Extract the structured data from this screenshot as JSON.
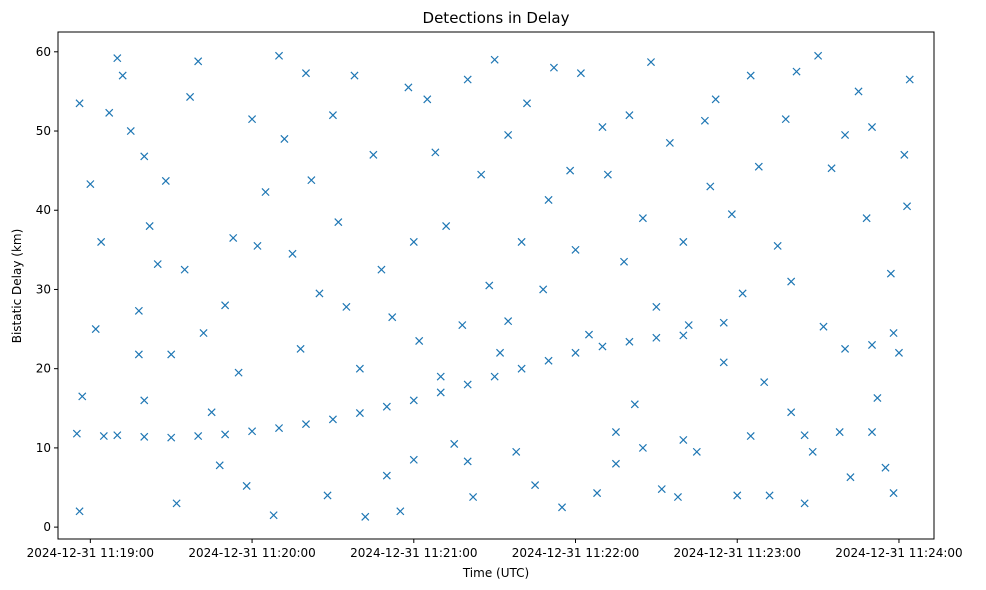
{
  "chart_data": {
    "type": "scatter",
    "title": "Detections in Delay",
    "xlabel": "Time (UTC)",
    "ylabel": "Bistatic Delay (km)",
    "marker": "x",
    "marker_color": "#1f77b4",
    "grid": false,
    "legend": "none",
    "xlim": [
      "2024-12-31T11:18:48",
      "2024-12-31T11:24:13"
    ],
    "ylim": [
      -1.5,
      62.5
    ],
    "x_ticks": [
      "2024-12-31T11:19:00",
      "2024-12-31T11:20:00",
      "2024-12-31T11:21:00",
      "2024-12-31T11:22:00",
      "2024-12-31T11:23:00",
      "2024-12-31T11:24:00"
    ],
    "x_tick_labels": [
      "2024-12-31 11:19:00",
      "2024-12-31 11:20:00",
      "2024-12-31 11:21:00",
      "2024-12-31 11:22:00",
      "2024-12-31 11:23:00",
      "2024-12-31 11:24:00"
    ],
    "y_ticks": [
      0,
      10,
      20,
      30,
      40,
      50,
      60
    ],
    "y_tick_labels": [
      "0",
      "10",
      "20",
      "30",
      "40",
      "50",
      "60"
    ],
    "series": [
      {
        "points": [
          [
            "2024-12-31T11:18:55",
            11.8
          ],
          [
            "2024-12-31T11:19:05",
            11.5
          ],
          [
            "2024-12-31T11:19:10",
            11.6
          ],
          [
            "2024-12-31T11:19:20",
            11.4
          ],
          [
            "2024-12-31T11:19:30",
            11.3
          ],
          [
            "2024-12-31T11:19:40",
            11.5
          ],
          [
            "2024-12-31T11:19:50",
            11.7
          ],
          [
            "2024-12-31T11:20:00",
            12.1
          ],
          [
            "2024-12-31T11:20:10",
            12.5
          ],
          [
            "2024-12-31T11:20:20",
            13.0
          ],
          [
            "2024-12-31T11:20:30",
            13.6
          ],
          [
            "2024-12-31T11:20:40",
            14.4
          ],
          [
            "2024-12-31T11:20:50",
            15.2
          ],
          [
            "2024-12-31T11:21:00",
            16.0
          ],
          [
            "2024-12-31T11:21:10",
            17.0
          ],
          [
            "2024-12-31T11:21:20",
            18.0
          ],
          [
            "2024-12-31T11:21:30",
            19.0
          ],
          [
            "2024-12-31T11:21:40",
            20.0
          ],
          [
            "2024-12-31T11:21:50",
            21.0
          ],
          [
            "2024-12-31T11:22:00",
            22.0
          ],
          [
            "2024-12-31T11:22:10",
            22.8
          ],
          [
            "2024-12-31T11:22:20",
            23.4
          ],
          [
            "2024-12-31T11:22:30",
            23.9
          ],
          [
            "2024-12-31T11:22:40",
            24.2
          ],
          [
            "2024-12-31T11:22:55",
            25.8
          ],
          [
            "2024-12-31T11:23:20",
            31.0
          ],
          [
            "2024-12-31T11:23:40",
            22.5
          ],
          [
            "2024-12-31T11:23:50",
            23.0
          ],
          [
            "2024-12-31T11:23:58",
            24.5
          ],
          [
            "2024-12-31T11:21:35",
            26.0
          ],
          [
            "2024-12-31T11:22:15",
            12.0
          ],
          [
            "2024-12-31T11:22:25",
            10.0
          ],
          [
            "2024-12-31T11:22:40",
            11.0
          ],
          [
            "2024-12-31T11:23:05",
            11.5
          ],
          [
            "2024-12-31T11:23:25",
            11.6
          ],
          [
            "2024-12-31T11:23:50",
            12.0
          ],
          [
            "2024-12-31T11:21:00",
            8.5
          ],
          [
            "2024-12-31T11:21:20",
            8.3
          ],
          [
            "2024-12-31T11:19:20",
            16.0
          ],
          [
            "2024-12-31T11:18:56",
            53.5
          ],
          [
            "2024-12-31T11:18:56",
            2.0
          ],
          [
            "2024-12-31T11:18:57",
            16.5
          ],
          [
            "2024-12-31T11:19:00",
            43.3
          ],
          [
            "2024-12-31T11:19:02",
            25.0
          ],
          [
            "2024-12-31T11:19:04",
            36.0
          ],
          [
            "2024-12-31T11:19:07",
            52.3
          ],
          [
            "2024-12-31T11:19:10",
            59.2
          ],
          [
            "2024-12-31T11:19:12",
            57.0
          ],
          [
            "2024-12-31T11:19:15",
            50.0
          ],
          [
            "2024-12-31T11:19:18",
            27.3
          ],
          [
            "2024-12-31T11:19:18",
            21.8
          ],
          [
            "2024-12-31T11:19:20",
            46.8
          ],
          [
            "2024-12-31T11:19:22",
            38.0
          ],
          [
            "2024-12-31T11:19:25",
            33.2
          ],
          [
            "2024-12-31T11:19:28",
            43.7
          ],
          [
            "2024-12-31T11:19:30",
            21.8
          ],
          [
            "2024-12-31T11:19:32",
            3.0
          ],
          [
            "2024-12-31T11:19:35",
            32.5
          ],
          [
            "2024-12-31T11:19:37",
            54.3
          ],
          [
            "2024-12-31T11:19:40",
            58.8
          ],
          [
            "2024-12-31T11:19:42",
            24.5
          ],
          [
            "2024-12-31T11:19:45",
            14.5
          ],
          [
            "2024-12-31T11:19:48",
            7.8
          ],
          [
            "2024-12-31T11:19:50",
            28.0
          ],
          [
            "2024-12-31T11:19:53",
            36.5
          ],
          [
            "2024-12-31T11:19:55",
            19.5
          ],
          [
            "2024-12-31T11:19:58",
            5.2
          ],
          [
            "2024-12-31T11:20:00",
            51.5
          ],
          [
            "2024-12-31T11:20:02",
            35.5
          ],
          [
            "2024-12-31T11:20:05",
            42.3
          ],
          [
            "2024-12-31T11:20:08",
            1.5
          ],
          [
            "2024-12-31T11:20:10",
            59.5
          ],
          [
            "2024-12-31T11:20:12",
            49.0
          ],
          [
            "2024-12-31T11:20:15",
            34.5
          ],
          [
            "2024-12-31T11:20:18",
            22.5
          ],
          [
            "2024-12-31T11:20:20",
            57.3
          ],
          [
            "2024-12-31T11:20:22",
            43.8
          ],
          [
            "2024-12-31T11:20:25",
            29.5
          ],
          [
            "2024-12-31T11:20:28",
            4.0
          ],
          [
            "2024-12-31T11:20:30",
            52.0
          ],
          [
            "2024-12-31T11:20:32",
            38.5
          ],
          [
            "2024-12-31T11:20:35",
            27.8
          ],
          [
            "2024-12-31T11:20:38",
            57.0
          ],
          [
            "2024-12-31T11:20:40",
            20.0
          ],
          [
            "2024-12-31T11:20:42",
            1.3
          ],
          [
            "2024-12-31T11:20:45",
            47.0
          ],
          [
            "2024-12-31T11:20:48",
            32.5
          ],
          [
            "2024-12-31T11:20:50",
            6.5
          ],
          [
            "2024-12-31T11:20:52",
            26.5
          ],
          [
            "2024-12-31T11:20:55",
            2.0
          ],
          [
            "2024-12-31T11:20:58",
            55.5
          ],
          [
            "2024-12-31T11:21:00",
            36.0
          ],
          [
            "2024-12-31T11:21:02",
            23.5
          ],
          [
            "2024-12-31T11:21:05",
            54.0
          ],
          [
            "2024-12-31T11:21:08",
            47.3
          ],
          [
            "2024-12-31T11:21:10",
            19.0
          ],
          [
            "2024-12-31T11:21:12",
            38.0
          ],
          [
            "2024-12-31T11:21:15",
            10.5
          ],
          [
            "2024-12-31T11:21:18",
            25.5
          ],
          [
            "2024-12-31T11:21:20",
            56.5
          ],
          [
            "2024-12-31T11:21:22",
            3.8
          ],
          [
            "2024-12-31T11:21:25",
            44.5
          ],
          [
            "2024-12-31T11:21:28",
            30.5
          ],
          [
            "2024-12-31T11:21:30",
            59.0
          ],
          [
            "2024-12-31T11:21:32",
            22.0
          ],
          [
            "2024-12-31T11:21:35",
            49.5
          ],
          [
            "2024-12-31T11:21:38",
            9.5
          ],
          [
            "2024-12-31T11:21:40",
            36.0
          ],
          [
            "2024-12-31T11:21:42",
            53.5
          ],
          [
            "2024-12-31T11:21:45",
            5.3
          ],
          [
            "2024-12-31T11:21:48",
            30.0
          ],
          [
            "2024-12-31T11:21:50",
            41.3
          ],
          [
            "2024-12-31T11:21:52",
            58.0
          ],
          [
            "2024-12-31T11:21:55",
            2.5
          ],
          [
            "2024-12-31T11:21:58",
            45.0
          ],
          [
            "2024-12-31T11:22:00",
            35.0
          ],
          [
            "2024-12-31T11:22:02",
            57.3
          ],
          [
            "2024-12-31T11:22:05",
            24.3
          ],
          [
            "2024-12-31T11:22:08",
            4.3
          ],
          [
            "2024-12-31T11:22:10",
            50.5
          ],
          [
            "2024-12-31T11:22:12",
            44.5
          ],
          [
            "2024-12-31T11:22:15",
            8.0
          ],
          [
            "2024-12-31T11:22:18",
            33.5
          ],
          [
            "2024-12-31T11:22:20",
            52.0
          ],
          [
            "2024-12-31T11:22:22",
            15.5
          ],
          [
            "2024-12-31T11:22:25",
            39.0
          ],
          [
            "2024-12-31T11:22:28",
            58.7
          ],
          [
            "2024-12-31T11:22:30",
            27.8
          ],
          [
            "2024-12-31T11:22:32",
            4.8
          ],
          [
            "2024-12-31T11:22:35",
            48.5
          ],
          [
            "2024-12-31T11:22:38",
            3.8
          ],
          [
            "2024-12-31T11:22:40",
            36.0
          ],
          [
            "2024-12-31T11:22:42",
            25.5
          ],
          [
            "2024-12-31T11:22:45",
            9.5
          ],
          [
            "2024-12-31T11:22:48",
            51.3
          ],
          [
            "2024-12-31T11:22:50",
            43.0
          ],
          [
            "2024-12-31T11:22:52",
            54.0
          ],
          [
            "2024-12-31T11:22:55",
            20.8
          ],
          [
            "2024-12-31T11:22:58",
            39.5
          ],
          [
            "2024-12-31T11:23:00",
            4.0
          ],
          [
            "2024-12-31T11:23:02",
            29.5
          ],
          [
            "2024-12-31T11:23:05",
            57.0
          ],
          [
            "2024-12-31T11:23:08",
            45.5
          ],
          [
            "2024-12-31T11:23:10",
            18.3
          ],
          [
            "2024-12-31T11:23:12",
            4.0
          ],
          [
            "2024-12-31T11:23:15",
            35.5
          ],
          [
            "2024-12-31T11:23:18",
            51.5
          ],
          [
            "2024-12-31T11:23:20",
            14.5
          ],
          [
            "2024-12-31T11:23:22",
            57.5
          ],
          [
            "2024-12-31T11:23:25",
            3.0
          ],
          [
            "2024-12-31T11:23:28",
            9.5
          ],
          [
            "2024-12-31T11:23:30",
            59.5
          ],
          [
            "2024-12-31T11:23:32",
            25.3
          ],
          [
            "2024-12-31T11:23:35",
            45.3
          ],
          [
            "2024-12-31T11:23:38",
            12.0
          ],
          [
            "2024-12-31T11:23:40",
            49.5
          ],
          [
            "2024-12-31T11:23:42",
            6.3
          ],
          [
            "2024-12-31T11:23:45",
            55.0
          ],
          [
            "2024-12-31T11:23:48",
            39.0
          ],
          [
            "2024-12-31T11:23:50",
            50.5
          ],
          [
            "2024-12-31T11:23:52",
            16.3
          ],
          [
            "2024-12-31T11:23:55",
            7.5
          ],
          [
            "2024-12-31T11:23:57",
            32.0
          ],
          [
            "2024-12-31T11:23:58",
            4.3
          ],
          [
            "2024-12-31T11:24:00",
            22.0
          ],
          [
            "2024-12-31T11:24:02",
            47.0
          ],
          [
            "2024-12-31T11:24:03",
            40.5
          ],
          [
            "2024-12-31T11:24:04",
            56.5
          ]
        ]
      }
    ]
  }
}
